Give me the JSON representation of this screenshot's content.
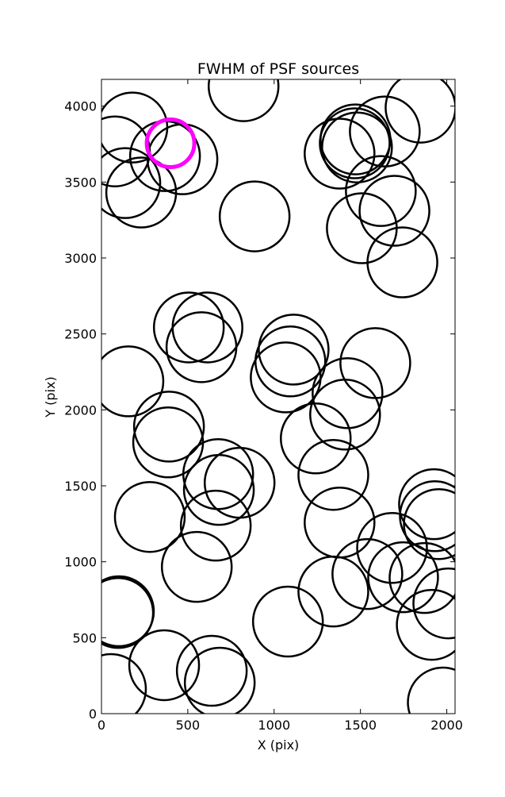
{
  "chart_data": {
    "type": "scatter",
    "title": "FWHM of PSF sources",
    "xlabel": "X (pix)",
    "ylabel": "Y (pix)",
    "xlim": [
      0,
      2048
    ],
    "ylim": [
      0,
      4176
    ],
    "xticks": [
      0,
      500,
      1000,
      1500,
      2000
    ],
    "yticks": [
      0,
      500,
      1000,
      1500,
      2000,
      2500,
      3000,
      3500,
      4000
    ],
    "grid": false,
    "series": [
      {
        "color": "#000000",
        "x": [
          179,
          78,
          138,
          230,
          368,
          469,
          823,
          887,
          1379,
          1471,
          1480,
          1467,
          1641,
          1848,
          1618,
          1508,
          1697,
          1743,
          506,
          614,
          579,
          156,
          1113,
          1094,
          1067,
          1586,
          1425,
          1411,
          1241,
          391,
          386,
          1343,
          676,
          680,
          800,
          280,
          662,
          1379,
          1926,
          1954,
          1931,
          552,
          101,
          97,
          1683,
          1540,
          1871,
          1343,
          1080,
          1747,
          2009,
          1913,
          363,
          639,
          685,
          55,
          1977
        ],
        "y": [
          3859,
          3702,
          3493,
          3431,
          3671,
          3650,
          4131,
          3274,
          3687,
          3781,
          3728,
          3755,
          3833,
          3990,
          3441,
          3196,
          3311,
          2971,
          2543,
          2543,
          2413,
          2188,
          2397,
          2319,
          2214,
          2308,
          2110,
          1969,
          1812,
          1890,
          1786,
          1572,
          1577,
          1473,
          1520,
          1295,
          1238,
          1258,
          1379,
          1248,
          1300,
          966,
          674,
          663,
          1091,
          919,
          893,
          804,
          606,
          898,
          726,
          585,
          319,
          282,
          204,
          162,
          73
        ]
      },
      {
        "color": "#ff00ff",
        "x": [
          400
        ],
        "y": [
          3755
        ]
      }
    ]
  }
}
